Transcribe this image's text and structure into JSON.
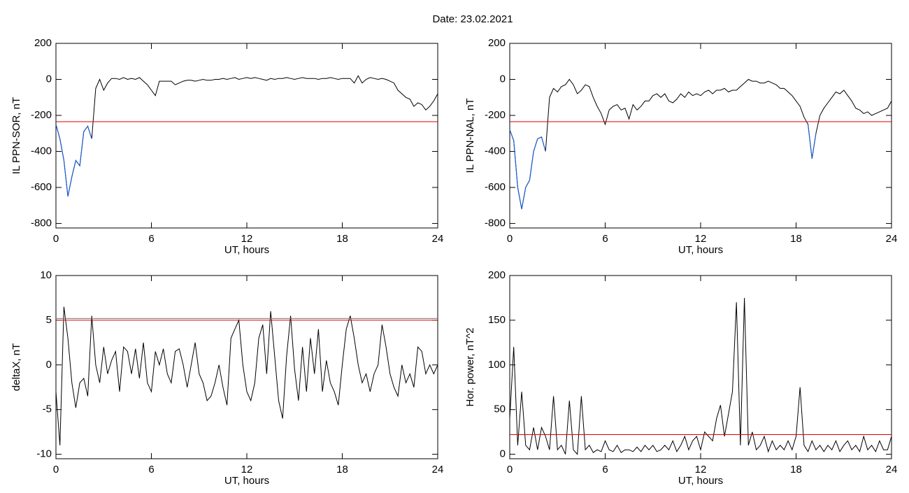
{
  "title": "Date:  23.02.2021",
  "chart_data": [
    {
      "type": "line",
      "xlabel": "UT, hours",
      "ylabel": "IL PPN-SOR, nT",
      "xlim": [
        0,
        24
      ],
      "xticks": [
        0,
        6,
        12,
        18,
        24
      ],
      "ylim": [
        -825,
        200
      ],
      "yticks": [
        200,
        0,
        -200,
        -400,
        -600,
        -800
      ],
      "hlines": [
        {
          "value": -235,
          "color": "#e00000",
          "highlight_below_color": "#1f5fd0"
        }
      ],
      "x": [
        0,
        0.25,
        0.5,
        0.75,
        1,
        1.25,
        1.5,
        1.75,
        2,
        2.25,
        2.5,
        2.75,
        3,
        3.25,
        3.5,
        3.75,
        4,
        4.25,
        4.5,
        4.75,
        5,
        5.25,
        5.5,
        5.75,
        6,
        6.25,
        6.5,
        6.75,
        7,
        7.25,
        7.5,
        7.75,
        8,
        8.25,
        8.5,
        8.75,
        9,
        9.25,
        9.5,
        9.75,
        10,
        10.25,
        10.5,
        10.75,
        11,
        11.25,
        11.5,
        11.75,
        12,
        12.25,
        12.5,
        12.75,
        13,
        13.25,
        13.5,
        13.75,
        14,
        14.25,
        14.5,
        14.75,
        15,
        15.25,
        15.5,
        15.75,
        16,
        16.25,
        16.5,
        16.75,
        17,
        17.25,
        17.5,
        17.75,
        18,
        18.25,
        18.5,
        18.75,
        19,
        19.25,
        19.5,
        19.75,
        20,
        20.25,
        20.5,
        20.75,
        21,
        21.25,
        21.5,
        21.75,
        22,
        22.25,
        22.5,
        22.75,
        23,
        23.25,
        23.5,
        23.75,
        24
      ],
      "series": [
        {
          "color": "#000000",
          "values": [
            -250,
            -330,
            -450,
            -650,
            -540,
            -450,
            -480,
            -290,
            -260,
            -330,
            -50,
            0,
            -60,
            -20,
            5,
            5,
            0,
            10,
            0,
            5,
            0,
            10,
            -10,
            -30,
            -60,
            -90,
            -10,
            -10,
            -10,
            -10,
            -30,
            -20,
            -10,
            -5,
            -5,
            -10,
            -5,
            0,
            -5,
            -5,
            0,
            0,
            5,
            0,
            5,
            10,
            0,
            5,
            10,
            5,
            10,
            5,
            0,
            -5,
            5,
            0,
            5,
            5,
            10,
            5,
            0,
            5,
            10,
            5,
            5,
            5,
            0,
            5,
            5,
            10,
            5,
            0,
            5,
            5,
            5,
            -20,
            20,
            -20,
            0,
            10,
            5,
            0,
            5,
            0,
            -10,
            -20,
            -60,
            -80,
            -100,
            -110,
            -150,
            -130,
            -140,
            -170,
            -150,
            -120,
            -80
          ]
        }
      ]
    },
    {
      "type": "line",
      "xlabel": "UT, hours",
      "ylabel": "IL PPN-NAL, nT",
      "xlim": [
        0,
        24
      ],
      "xticks": [
        0,
        6,
        12,
        18,
        24
      ],
      "ylim": [
        -825,
        200
      ],
      "yticks": [
        200,
        0,
        -200,
        -400,
        -600,
        -800
      ],
      "hlines": [
        {
          "value": -235,
          "color": "#e00000",
          "highlight_below_color": "#1f5fd0"
        }
      ],
      "x": [
        0,
        0.25,
        0.5,
        0.75,
        1,
        1.25,
        1.5,
        1.75,
        2,
        2.25,
        2.5,
        2.75,
        3,
        3.25,
        3.5,
        3.75,
        4,
        4.25,
        4.5,
        4.75,
        5,
        5.25,
        5.5,
        5.75,
        6,
        6.25,
        6.5,
        6.75,
        7,
        7.25,
        7.5,
        7.75,
        8,
        8.25,
        8.5,
        8.75,
        9,
        9.25,
        9.5,
        9.75,
        10,
        10.25,
        10.5,
        10.75,
        11,
        11.25,
        11.5,
        11.75,
        12,
        12.25,
        12.5,
        12.75,
        13,
        13.25,
        13.5,
        13.75,
        14,
        14.25,
        14.5,
        14.75,
        15,
        15.25,
        15.5,
        15.75,
        16,
        16.25,
        16.5,
        16.75,
        17,
        17.25,
        17.5,
        17.75,
        18,
        18.25,
        18.5,
        18.75,
        19,
        19.25,
        19.5,
        19.75,
        20,
        20.25,
        20.5,
        20.75,
        21,
        21.25,
        21.5,
        21.75,
        22,
        22.25,
        22.5,
        22.75,
        23,
        23.25,
        23.5,
        23.75,
        24
      ],
      "series": [
        {
          "color": "#000000",
          "values": [
            -280,
            -340,
            -600,
            -720,
            -600,
            -560,
            -400,
            -330,
            -320,
            -400,
            -100,
            -50,
            -70,
            -40,
            -30,
            0,
            -30,
            -80,
            -60,
            -30,
            -40,
            -100,
            -150,
            -190,
            -250,
            -170,
            -150,
            -140,
            -170,
            -160,
            -220,
            -140,
            -170,
            -150,
            -120,
            -120,
            -90,
            -80,
            -100,
            -80,
            -120,
            -130,
            -110,
            -80,
            -100,
            -70,
            -90,
            -80,
            -90,
            -70,
            -60,
            -80,
            -60,
            -60,
            -50,
            -70,
            -60,
            -60,
            -40,
            -20,
            0,
            -10,
            -10,
            -20,
            -20,
            -10,
            -20,
            -30,
            -50,
            -50,
            -70,
            -90,
            -120,
            -150,
            -210,
            -250,
            -440,
            -300,
            -200,
            -160,
            -130,
            -100,
            -70,
            -80,
            -60,
            -90,
            -120,
            -160,
            -170,
            -190,
            -180,
            -200,
            -190,
            -180,
            -170,
            -160,
            -120
          ]
        }
      ]
    },
    {
      "type": "line",
      "xlabel": "UT, hours",
      "ylabel": "deltaX, nT",
      "xlim": [
        0,
        24
      ],
      "xticks": [
        0,
        6,
        12,
        18,
        24
      ],
      "ylim": [
        -10.5,
        10
      ],
      "yticks": [
        10,
        5,
        0,
        -5,
        -10
      ],
      "hlines": [
        {
          "value": 5.2,
          "color": "#777777"
        },
        {
          "value": 5,
          "color": "#e00000"
        }
      ],
      "x": [
        0,
        0.25,
        0.5,
        0.75,
        1,
        1.25,
        1.5,
        1.75,
        2,
        2.25,
        2.5,
        2.75,
        3,
        3.25,
        3.5,
        3.75,
        4,
        4.25,
        4.5,
        4.75,
        5,
        5.25,
        5.5,
        5.75,
        6,
        6.25,
        6.5,
        6.75,
        7,
        7.25,
        7.5,
        7.75,
        8,
        8.25,
        8.5,
        8.75,
        9,
        9.25,
        9.5,
        9.75,
        10,
        10.25,
        10.5,
        10.75,
        11,
        11.25,
        11.5,
        11.75,
        12,
        12.25,
        12.5,
        12.75,
        13,
        13.25,
        13.5,
        13.75,
        14,
        14.25,
        14.5,
        14.75,
        15,
        15.25,
        15.5,
        15.75,
        16,
        16.25,
        16.5,
        16.75,
        17,
        17.25,
        17.5,
        17.75,
        18,
        18.25,
        18.5,
        18.75,
        19,
        19.25,
        19.5,
        19.75,
        20,
        20.25,
        20.5,
        20.75,
        21,
        21.25,
        21.5,
        21.75,
        22,
        22.25,
        22.5,
        22.75,
        23,
        23.25,
        23.5,
        23.75,
        24
      ],
      "series": [
        {
          "color": "#000000",
          "values": [
            -3,
            -9,
            6.5,
            3,
            -2,
            -4.8,
            -2,
            -1.5,
            -3.5,
            5.5,
            0,
            -2,
            2,
            -1,
            0.5,
            1.5,
            -3,
            2,
            1.5,
            -1,
            1.8,
            -1.5,
            2.5,
            -2,
            -3,
            1.5,
            0,
            1.8,
            -1,
            -2,
            1.5,
            1.8,
            0,
            -2.5,
            0,
            2.5,
            -1,
            -2,
            -4,
            -3.5,
            -2,
            0,
            -2.5,
            -4.5,
            3,
            4,
            5,
            0,
            -3,
            -4,
            -2,
            3,
            4.5,
            -1,
            6,
            1,
            -4,
            -6,
            1,
            5.5,
            -0.5,
            -4,
            2,
            -3,
            3,
            -1,
            4,
            -3,
            0.5,
            -2,
            -3,
            -4.5,
            0,
            4,
            5.5,
            3,
            0,
            -2,
            -1,
            -3,
            -1,
            0,
            4.5,
            2,
            -1,
            -2.5,
            -3.5,
            0,
            -2,
            -1,
            -2.5,
            2,
            1.5,
            -1,
            0,
            -1,
            0
          ]
        }
      ]
    },
    {
      "type": "line",
      "xlabel": "UT, hours",
      "ylabel": "Hor. power, nT^2",
      "xlim": [
        0,
        24
      ],
      "xticks": [
        0,
        6,
        12,
        18,
        24
      ],
      "ylim": [
        -5,
        200
      ],
      "yticks": [
        200,
        150,
        100,
        50,
        0
      ],
      "hlines": [
        {
          "value": 22,
          "color": "#e00000"
        }
      ],
      "x": [
        0,
        0.25,
        0.5,
        0.75,
        1,
        1.25,
        1.5,
        1.75,
        2,
        2.25,
        2.5,
        2.75,
        3,
        3.25,
        3.5,
        3.75,
        4,
        4.25,
        4.5,
        4.75,
        5,
        5.25,
        5.5,
        5.75,
        6,
        6.25,
        6.5,
        6.75,
        7,
        7.25,
        7.5,
        7.75,
        8,
        8.25,
        8.5,
        8.75,
        9,
        9.25,
        9.5,
        9.75,
        10,
        10.25,
        10.5,
        10.75,
        11,
        11.25,
        11.5,
        11.75,
        12,
        12.25,
        12.5,
        12.75,
        13,
        13.25,
        13.5,
        13.75,
        14,
        14.25,
        14.5,
        14.75,
        15,
        15.25,
        15.5,
        15.75,
        16,
        16.25,
        16.5,
        16.75,
        17,
        17.25,
        17.5,
        17.75,
        18,
        18.25,
        18.5,
        18.75,
        19,
        19.25,
        19.5,
        19.75,
        20,
        20.25,
        20.5,
        20.75,
        21,
        21.25,
        21.5,
        21.75,
        22,
        22.25,
        22.5,
        22.75,
        23,
        23.25,
        23.5,
        23.75,
        24
      ],
      "series": [
        {
          "color": "#000000",
          "values": [
            40,
            120,
            10,
            70,
            10,
            5,
            30,
            5,
            30,
            20,
            5,
            65,
            5,
            10,
            0,
            60,
            5,
            0,
            65,
            5,
            10,
            2,
            5,
            3,
            15,
            5,
            3,
            10,
            2,
            5,
            5,
            3,
            8,
            3,
            10,
            5,
            10,
            3,
            5,
            10,
            5,
            15,
            3,
            10,
            20,
            5,
            15,
            20,
            5,
            25,
            20,
            15,
            40,
            55,
            20,
            45,
            70,
            170,
            10,
            175,
            10,
            25,
            5,
            10,
            20,
            3,
            15,
            5,
            10,
            5,
            15,
            5,
            20,
            75,
            10,
            3,
            15,
            5,
            10,
            3,
            10,
            5,
            15,
            3,
            10,
            15,
            5,
            10,
            3,
            20,
            5,
            10,
            3,
            15,
            5,
            5,
            20
          ]
        }
      ]
    }
  ]
}
